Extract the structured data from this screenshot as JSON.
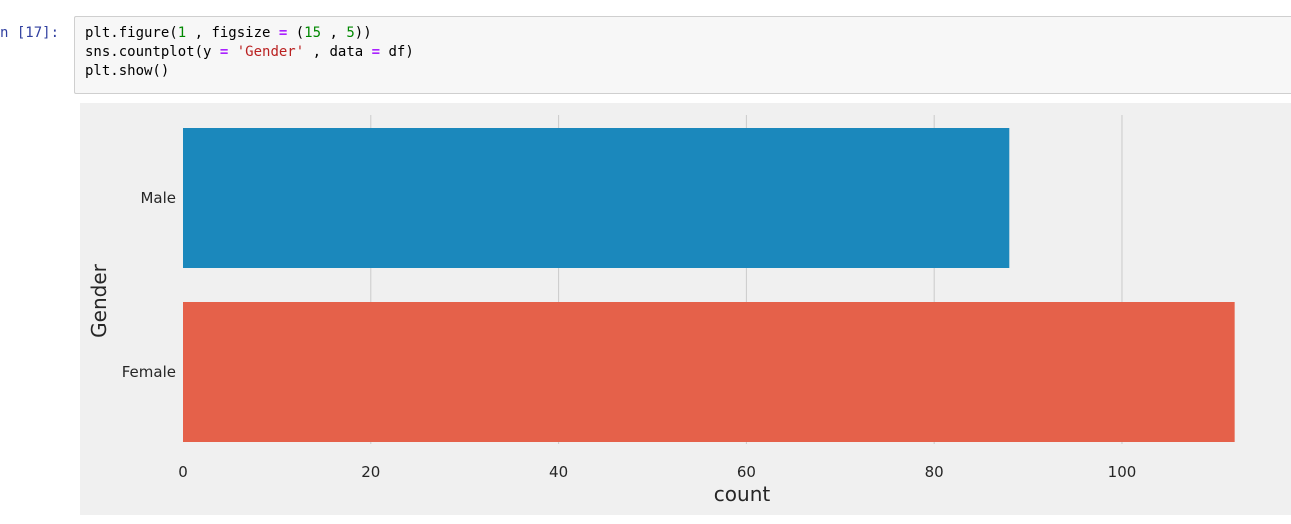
{
  "cell": {
    "prompt": "n [17]:",
    "code_lines": [
      [
        {
          "t": "plt.figure(",
          "k": "plain"
        },
        {
          "t": "1",
          "k": "num"
        },
        {
          "t": " , figsize ",
          "k": "plain"
        },
        {
          "t": "=",
          "k": "op"
        },
        {
          "t": " (",
          "k": "plain"
        },
        {
          "t": "15",
          "k": "num"
        },
        {
          "t": " , ",
          "k": "plain"
        },
        {
          "t": "5",
          "k": "num"
        },
        {
          "t": "))",
          "k": "plain"
        }
      ],
      [
        {
          "t": "sns.countplot(y ",
          "k": "plain"
        },
        {
          "t": "=",
          "k": "op"
        },
        {
          "t": " ",
          "k": "plain"
        },
        {
          "t": "'Gender'",
          "k": "str"
        },
        {
          "t": " , data ",
          "k": "plain"
        },
        {
          "t": "=",
          "k": "op"
        },
        {
          "t": " df)",
          "k": "plain"
        }
      ],
      [
        {
          "t": "plt.show()",
          "k": "plain"
        }
      ]
    ]
  },
  "chart_data": {
    "type": "bar",
    "orientation": "horizontal",
    "categories": [
      "Male",
      "Female"
    ],
    "values": [
      88,
      112
    ],
    "colors": [
      "#1b88bc",
      "#e5614a"
    ],
    "xlabel": "count",
    "ylabel": "Gender",
    "xlim": [
      0,
      118
    ],
    "xticks": [
      0,
      20,
      40,
      60,
      80,
      100
    ],
    "grid": true,
    "background": "#f0f0f0",
    "grid_color": "#cbcbcb"
  }
}
